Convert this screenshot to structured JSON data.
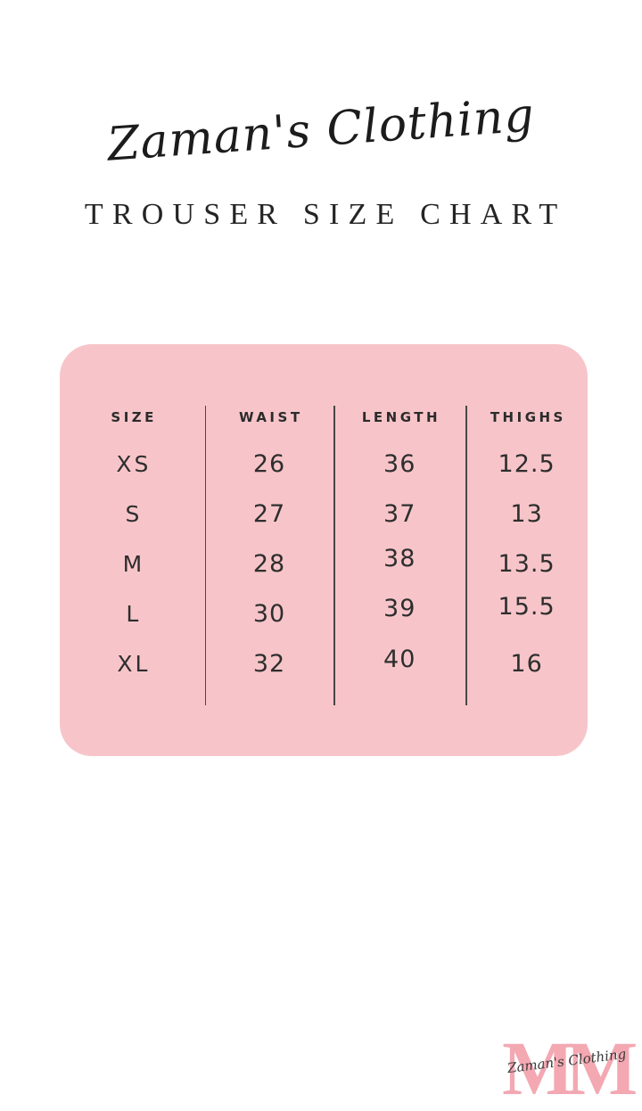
{
  "brand": {
    "script_title": "Zaman's Clothing"
  },
  "page": {
    "subtitle": "TROUSER SIZE CHART"
  },
  "chart_data": {
    "type": "table",
    "title": "TROUSER SIZE CHART",
    "columns": [
      "SIZE",
      "WAIST",
      "LENGTH",
      "THIGHS"
    ],
    "rows": [
      [
        "XS",
        "26",
        "36",
        "12.5"
      ],
      [
        "S",
        "27",
        "37",
        "13"
      ],
      [
        "M",
        "28",
        "38",
        "13.5"
      ],
      [
        "L",
        "30",
        "39",
        "15.5"
      ],
      [
        "XL",
        "32",
        "40",
        "16"
      ]
    ]
  },
  "watermark": {
    "monogram": "MM",
    "script": "Zaman's Clothing"
  },
  "colors": {
    "panel_pink": "#f7c5c9",
    "monogram_pink": "#f3a8b2",
    "text_dark": "#262626",
    "background": "#ffffff"
  }
}
